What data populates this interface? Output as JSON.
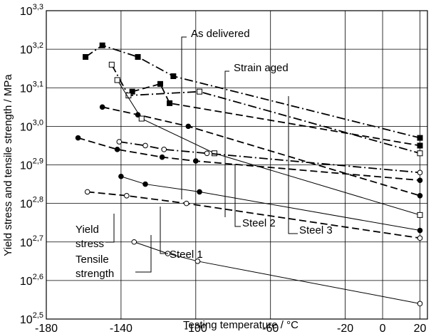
{
  "chart_data": {
    "type": "line",
    "x_label": "Testing temperature / °C",
    "y_label": "Yield stress and tensile strength / MPa",
    "xlim": [
      -180,
      24
    ],
    "xticks": [
      -180,
      -140,
      -100,
      -60,
      -20,
      0,
      20
    ],
    "ylim": [
      2.5,
      3.3
    ],
    "yticks": [
      {
        "value": 2.5,
        "label": "10^2,5"
      },
      {
        "value": 2.6,
        "label": "10^2,6"
      },
      {
        "value": 2.7,
        "label": "10^2,7"
      },
      {
        "value": 2.8,
        "label": "10^2,8"
      },
      {
        "value": 2.9,
        "label": "10^2,9"
      },
      {
        "value": 3.0,
        "label": "10^3,0"
      },
      {
        "value": 3.1,
        "label": "10^3,1"
      },
      {
        "value": 3.2,
        "label": "10^3,2"
      },
      {
        "value": 3.3,
        "label": "10^3,3"
      }
    ],
    "grid": true,
    "color": "#000000",
    "series": [
      {
        "marker": "square-filled",
        "dash": "dashdot",
        "x": [
          -159,
          -150,
          -131,
          -112,
          20
        ],
        "values": [
          3.18,
          3.21,
          3.18,
          3.13,
          2.97
        ]
      },
      {
        "marker": "square-filled",
        "dash": "dash",
        "x": [
          -134,
          -119,
          -114,
          20
        ],
        "values": [
          3.09,
          3.11,
          3.06,
          2.95
        ]
      },
      {
        "marker": "square-open",
        "dash": "dashdot",
        "x": [
          -145,
          -136,
          -98,
          20
        ],
        "values": [
          3.16,
          3.08,
          3.09,
          2.93
        ]
      },
      {
        "marker": "square-open",
        "dash": "solid",
        "x": [
          -142,
          -129,
          -90,
          20
        ],
        "values": [
          3.12,
          3.02,
          2.93,
          2.77
        ]
      },
      {
        "marker": "circle-filled",
        "dash": "dash",
        "x": [
          -150,
          -131,
          -104,
          20
        ],
        "values": [
          3.05,
          3.03,
          3.0,
          2.82
        ]
      },
      {
        "marker": "circle-filled",
        "dash": "dash",
        "x": [
          -163,
          -142,
          -118,
          -100,
          20
        ],
        "values": [
          2.97,
          2.94,
          2.92,
          2.91,
          2.86
        ]
      },
      {
        "marker": "circle-open",
        "dash": "dashdot",
        "x": [
          -141,
          -127,
          -117,
          -94,
          20
        ],
        "values": [
          2.96,
          2.95,
          2.94,
          2.93,
          2.88
        ]
      },
      {
        "marker": "circle-filled",
        "dash": "solid",
        "x": [
          -140,
          -127,
          -98,
          20
        ],
        "values": [
          2.87,
          2.85,
          2.83,
          2.73
        ]
      },
      {
        "marker": "circle-open",
        "dash": "dash",
        "x": [
          -158,
          -137,
          -105,
          20
        ],
        "values": [
          2.83,
          2.82,
          2.8,
          2.71
        ]
      },
      {
        "marker": "circle-open",
        "dash": "solid",
        "x": [
          -133,
          -115,
          -99,
          20
        ],
        "values": [
          2.7,
          2.67,
          2.65,
          2.54
        ]
      }
    ],
    "annotations": [
      "As delivered",
      "Strain aged",
      "Steel 2",
      "Steel 3",
      "Yield",
      "stress",
      "Steel 1",
      "Tensile",
      "strength"
    ]
  }
}
